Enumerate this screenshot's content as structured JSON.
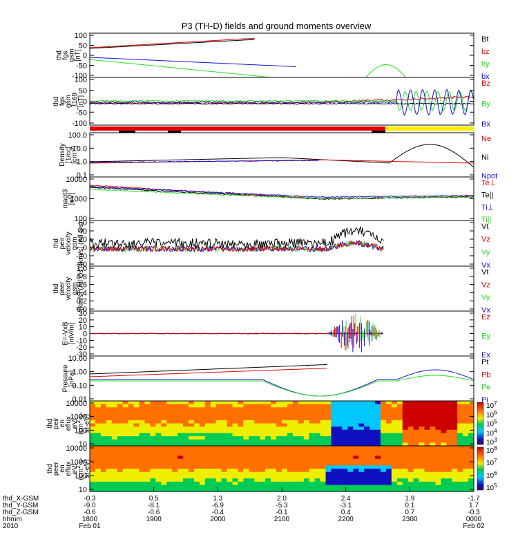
{
  "title": "P3 (TH-D) fields and ground moments overview",
  "colors": {
    "black": "#000000",
    "red": "#e00000",
    "green": "#22dd22",
    "blue": "#1010e0",
    "yellow": "#ffee00"
  },
  "chart_data": [
    {
      "type": "line",
      "id": "fgs",
      "ylabel": [
        "thd",
        "fgs",
        "gsm",
        "[nT]"
      ],
      "yticks": [
        "100",
        "50",
        "0",
        "-50",
        "-100"
      ],
      "ylim": [
        -100,
        100
      ],
      "legend": [
        {
          "text": "Bt",
          "color": "black"
        },
        {
          "text": "bz",
          "color": "red"
        },
        {
          "text": "by",
          "color": "green"
        },
        {
          "text": "bx",
          "color": "blue"
        }
      ]
    },
    {
      "type": "line",
      "id": "fgs169",
      "ylabel": [
        "thd",
        "fgs",
        "gsm",
        "_t169",
        "[nT]"
      ],
      "yticks": [
        "100",
        "50",
        "0",
        "-50",
        "-100"
      ],
      "ylim": [
        -100,
        100
      ],
      "legend": [
        {
          "text": "Bz",
          "color": "red"
        },
        {
          "text": "By",
          "color": "green"
        },
        {
          "text": "Bx",
          "color": "blue"
        }
      ]
    },
    {
      "type": "line",
      "id": "density",
      "ylabel": [
        "Density",
        "[1/cc]",
        "[cm^-3]"
      ],
      "yticks": [
        "100.0",
        "10.0",
        "1.0",
        "0.1"
      ],
      "yscale": "log",
      "legend": [
        {
          "text": "Ne",
          "color": "red"
        },
        {
          "text": "Ni",
          "color": "black"
        },
        {
          "text": "Npot",
          "color": "blue"
        }
      ]
    },
    {
      "type": "line",
      "id": "temp",
      "ylabel": [
        "magt3",
        "[eV]"
      ],
      "yticks": [
        "10000",
        "1000",
        "100"
      ],
      "yscale": "log",
      "legend": [
        {
          "text": "Te⊥",
          "color": "red"
        },
        {
          "text": "Te||",
          "color": "black"
        },
        {
          "text": "Ti⊥",
          "color": "blue"
        },
        {
          "text": "Ti||",
          "color": "green"
        }
      ]
    },
    {
      "type": "line",
      "id": "peirvel",
      "ylabel": [
        "thd",
        "peir",
        "velocity",
        "gsm",
        "[km/s] (All Qs)"
      ],
      "yticks": [
        "60",
        "40",
        "20",
        "0",
        "-20",
        "-40"
      ],
      "ylim": [
        -40,
        60
      ],
      "legend": [
        {
          "text": "Vt",
          "color": "black"
        },
        {
          "text": "Vz",
          "color": "red"
        },
        {
          "text": "Vy",
          "color": "green"
        },
        {
          "text": "Vx",
          "color": "blue"
        }
      ]
    },
    {
      "type": "line",
      "id": "peervel",
      "ylabel": [
        "thd",
        "peer",
        "velocity",
        "gsm",
        "[km/s] (All Qs)"
      ],
      "yticks": [
        "1.0",
        "0.8",
        "0.6",
        "0.4",
        "0.2",
        "0.0"
      ],
      "ylim": [
        0,
        1
      ],
      "legend": [
        {
          "text": "Vt",
          "color": "black"
        },
        {
          "text": "Vz",
          "color": "red"
        },
        {
          "text": "Vy",
          "color": "green"
        },
        {
          "text": "Vx",
          "color": "blue"
        }
      ]
    },
    {
      "type": "line",
      "id": "efield",
      "ylabel": [
        "E=-VxB",
        "[mV/m]"
      ],
      "yticks": [
        "30",
        "20",
        "10",
        "0",
        "-10",
        "-20",
        "-30"
      ],
      "ylim": [
        -30,
        30
      ],
      "legend": [
        {
          "text": "Ez",
          "color": "red"
        },
        {
          "text": "Ey",
          "color": "green"
        },
        {
          "text": "Ex",
          "color": "blue"
        }
      ]
    },
    {
      "type": "line",
      "id": "pressure",
      "ylabel": [
        "Pressure",
        "[nPa]"
      ],
      "yticks": [
        "10.00",
        "1.00",
        "0.10",
        "0.01"
      ],
      "yscale": "log",
      "legend": [
        {
          "text": "Pt",
          "color": "black"
        },
        {
          "text": "Pb",
          "color": "red"
        },
        {
          "text": "Pe",
          "color": "green"
        },
        {
          "text": "Pi",
          "color": "blue"
        }
      ]
    },
    {
      "type": "heatmap",
      "id": "peir_en",
      "ylabel": [
        "thd",
        "peir",
        "en",
        "eflux",
        "eV/",
        "(cm^2-s-",
        "sr-eV)"
      ],
      "yticks": [
        "10000",
        "1000",
        "100",
        "10"
      ],
      "yscale": "log",
      "colorbar": [
        "10^7",
        "10^6",
        "10^5",
        "10^4",
        "10^3"
      ]
    },
    {
      "type": "heatmap",
      "id": "peer_en",
      "ylabel": [
        "thd",
        "peer",
        "en",
        "eflux",
        "eV/",
        "(cm^2-s-",
        "sr-eV)"
      ],
      "yticks": [
        "10000",
        "1000",
        "100",
        "10"
      ],
      "yscale": "log",
      "colorbar": [
        "10^8",
        "10^7",
        "10^6",
        "10^5"
      ]
    }
  ],
  "xaxis": {
    "rows": [
      {
        "label": "thd_X-GSM",
        "values": [
          "-0.3",
          "0.5",
          "1.3",
          "2.0",
          "2.4",
          "1.9",
          "-1.7"
        ]
      },
      {
        "label": "thd_Y-GSM",
        "values": [
          "-9.0",
          "-8.1",
          "-6.9",
          "-5.3",
          "-3.1",
          "0.1",
          "1.7"
        ]
      },
      {
        "label": "thd_Z-GSM",
        "values": [
          "-0.6",
          "-0.6",
          "-0.4",
          "-0.1",
          "0.4",
          "0.7",
          "-0.3"
        ]
      },
      {
        "label": "hhmm",
        "values": [
          "1800",
          "1900",
          "2000",
          "2100",
          "2200",
          "2300",
          "0000"
        ]
      },
      {
        "label": "2010",
        "values": [
          "Feb 01",
          "",
          "",
          "",
          "",
          "",
          "Feb 02"
        ]
      }
    ]
  }
}
